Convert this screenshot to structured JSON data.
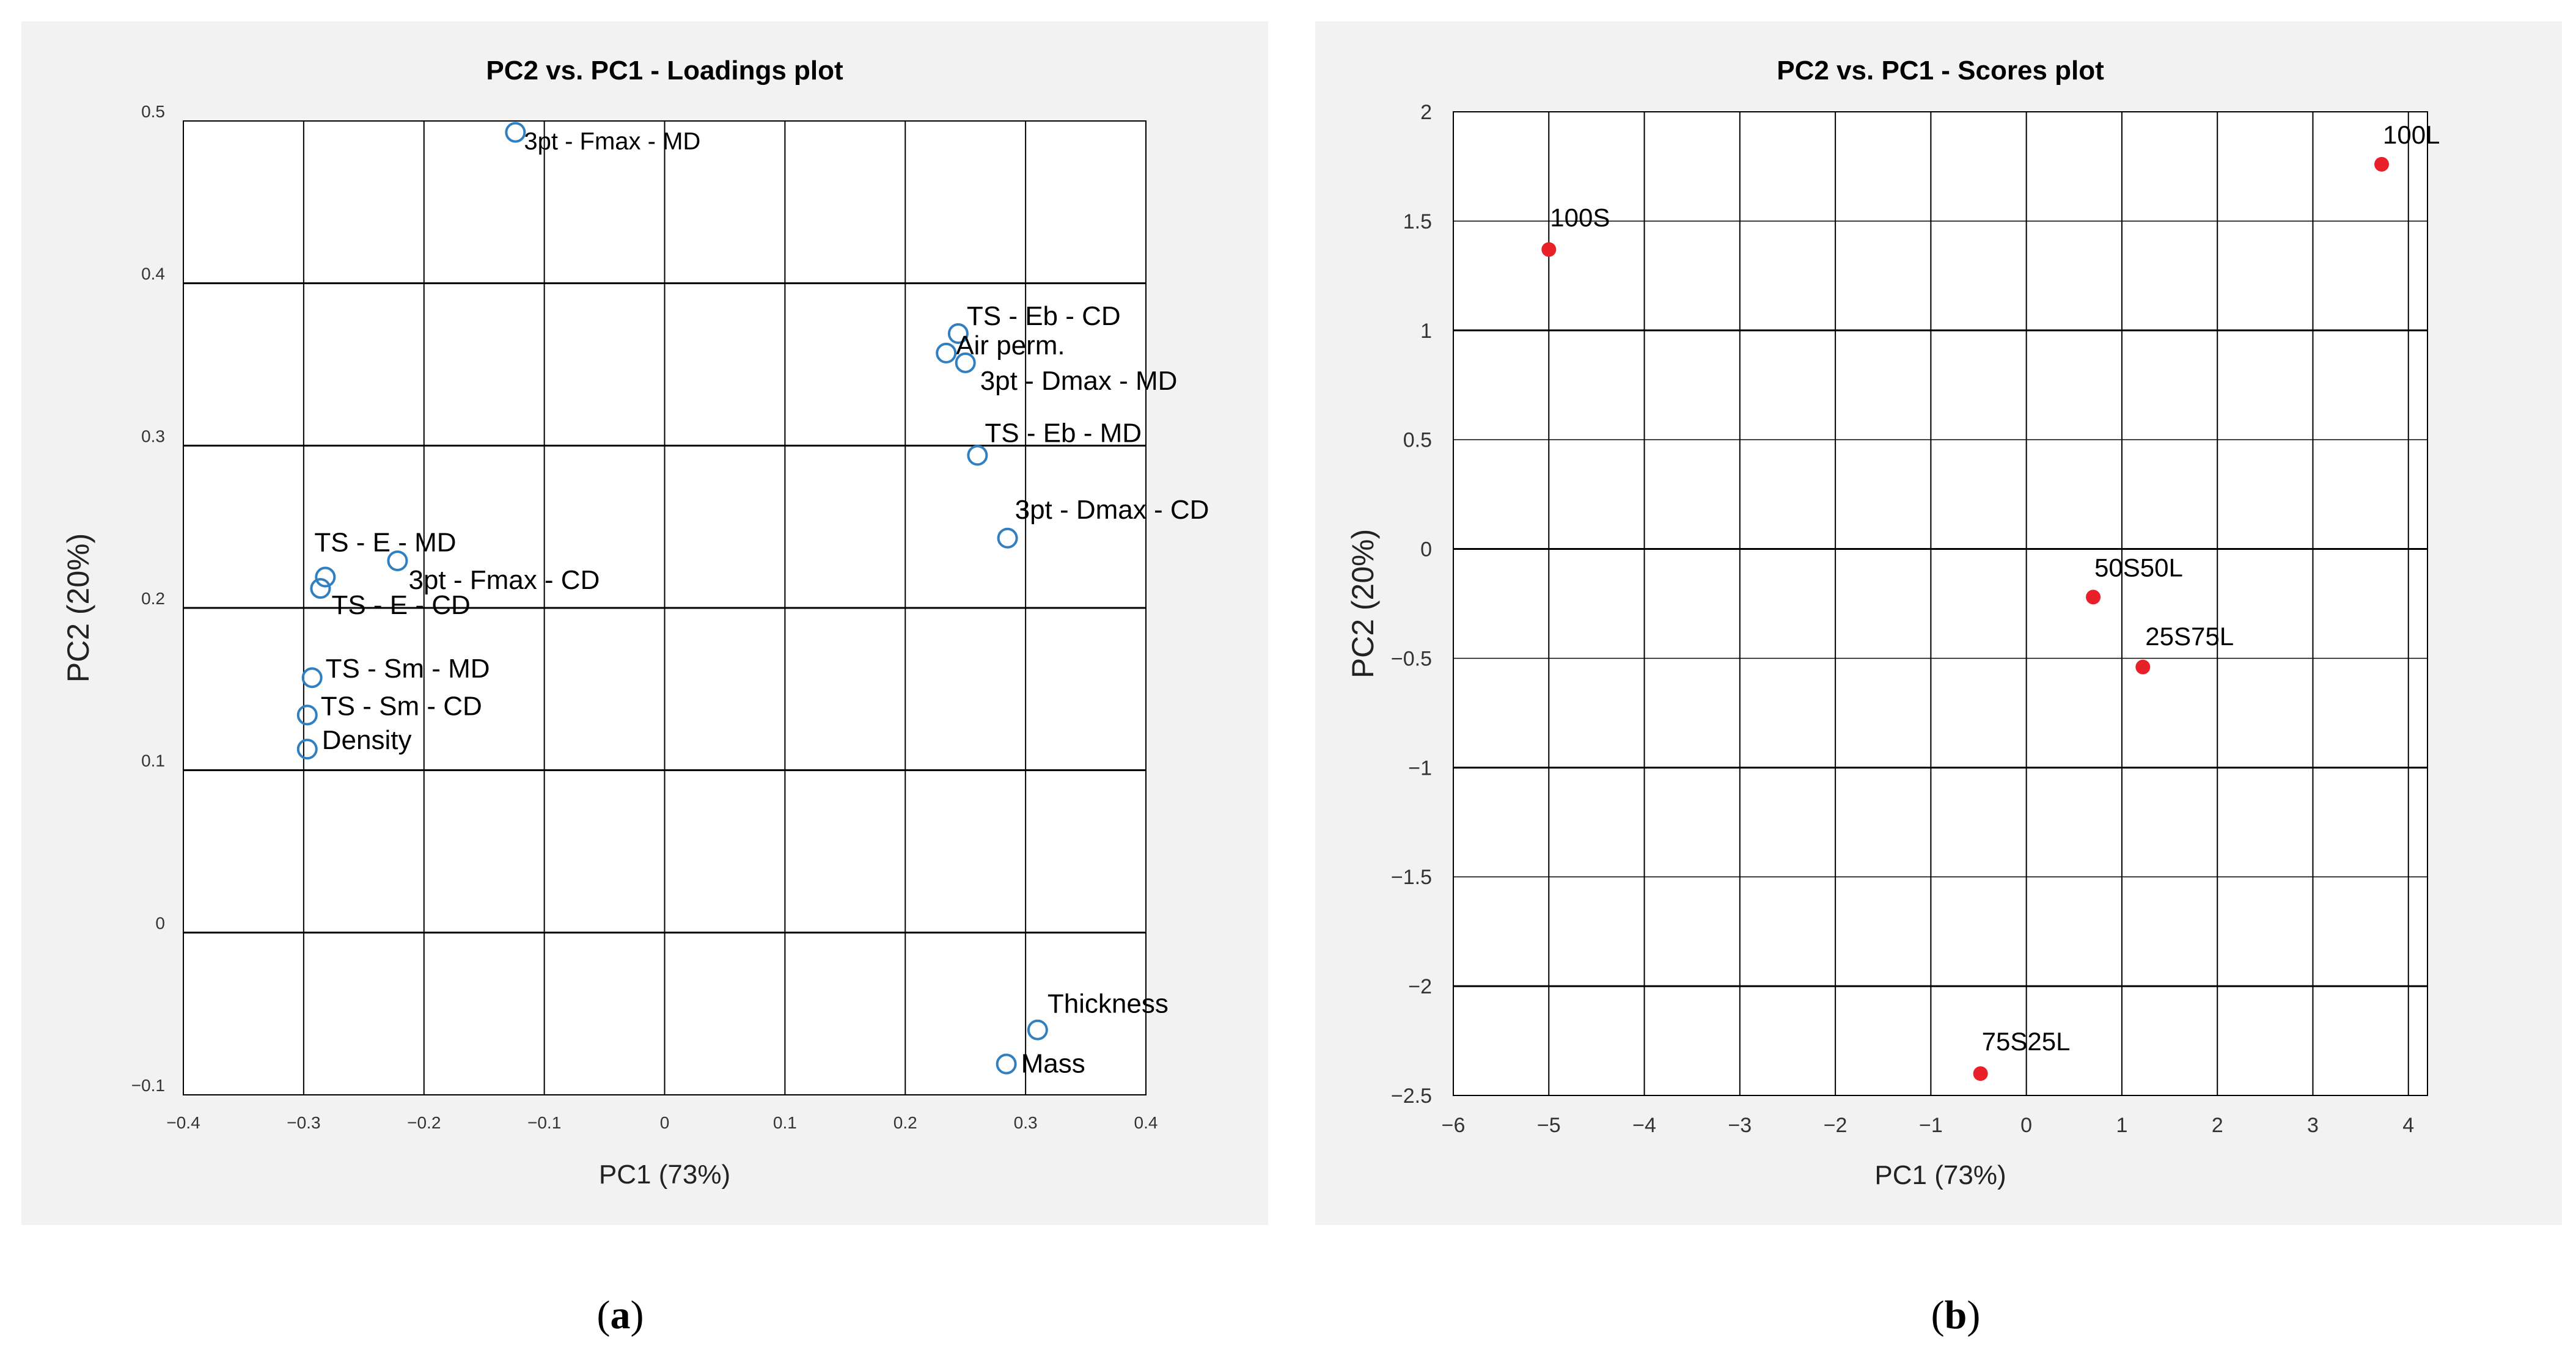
{
  "chart_data": [
    {
      "type": "scatter",
      "title": "PC2 vs. PC1 - Loadings plot",
      "xlabel": "PC1 (73%)",
      "ylabel": "PC2 (20%)",
      "xlim": [
        -0.4,
        0.4
      ],
      "ylim": [
        -0.1,
        0.5
      ],
      "xticks": [
        -0.4,
        -0.3,
        -0.2,
        -0.1,
        0,
        0.1,
        0.2,
        0.3,
        0.4
      ],
      "yticks": [
        -0.1,
        0,
        0.1,
        0.2,
        0.3,
        0.4,
        0.5
      ],
      "xtick_labels": [
        "−0.4",
        "−0.3",
        "−0.2",
        "−0.1",
        "0",
        "0.1",
        "0.2",
        "0.3",
        "0.4"
      ],
      "ytick_labels": [
        "−0.1",
        "0",
        "0.1",
        "0.2",
        "0.3",
        "0.4",
        "0.5"
      ],
      "grid": true,
      "marker": "open-circle",
      "marker_color": "#2f7fc1",
      "points": [
        {
          "label": "3pt - Fmax - MD",
          "x": -0.124,
          "y": 0.493
        },
        {
          "label": "TS - Eb - CD",
          "x": 0.244,
          "y": 0.369
        },
        {
          "label": "Air perm.",
          "x": 0.234,
          "y": 0.357
        },
        {
          "label": "3pt - Dmax - MD",
          "x": 0.25,
          "y": 0.351
        },
        {
          "label": "TS - Eb - MD",
          "x": 0.26,
          "y": 0.294
        },
        {
          "label": "3pt - Dmax - CD",
          "x": 0.285,
          "y": 0.243
        },
        {
          "label": "TS - E - MD",
          "x": -0.282,
          "y": 0.219
        },
        {
          "label": "3pt - Fmax - CD",
          "x": -0.222,
          "y": 0.229
        },
        {
          "label": "TS - E - CD",
          "x": -0.286,
          "y": 0.212
        },
        {
          "label": "TS - Sm - MD",
          "x": -0.293,
          "y": 0.157
        },
        {
          "label": "TS - Sm - CD",
          "x": -0.297,
          "y": 0.134
        },
        {
          "label": "Density",
          "x": -0.297,
          "y": 0.113
        },
        {
          "label": "Thickness",
          "x": 0.31,
          "y": -0.06
        },
        {
          "label": "Mass",
          "x": 0.284,
          "y": -0.081
        }
      ]
    },
    {
      "type": "scatter",
      "title": "PC2 vs. PC1 - Scores plot",
      "xlabel": "PC1 (73%)",
      "ylabel": "PC2 (20%)",
      "xlim": [
        -6,
        4.2
      ],
      "ylim": [
        -2.5,
        2
      ],
      "xticks": [
        -6,
        -5,
        -4,
        -3,
        -2,
        -1,
        0,
        1,
        2,
        3,
        4
      ],
      "yticks": [
        -2.5,
        -2,
        -1.5,
        -1,
        -0.5,
        0,
        0.5,
        1,
        1.5,
        2
      ],
      "xtick_labels": [
        "−6",
        "−5",
        "−4",
        "−3",
        "−2",
        "−1",
        "0",
        "1",
        "2",
        "3",
        "4"
      ],
      "ytick_labels": [
        "−2.5",
        "−2",
        "−1.5",
        "−1",
        "−0.5",
        "0",
        "0.5",
        "1",
        "1.5",
        "2"
      ],
      "grid": true,
      "marker": "filled-circle",
      "marker_color": "#e8202a",
      "points": [
        {
          "label": "100L",
          "x": 3.72,
          "y": 1.76
        },
        {
          "label": "100S",
          "x": -5.0,
          "y": 1.37
        },
        {
          "label": "50S50L",
          "x": 0.7,
          "y": -0.22
        },
        {
          "label": "25S75L",
          "x": 1.22,
          "y": -0.54
        },
        {
          "label": "75S25L",
          "x": -0.48,
          "y": -2.4
        }
      ]
    }
  ],
  "captions": [
    {
      "open": "(",
      "letter": "a",
      "close": ")"
    },
    {
      "open": "(",
      "letter": "b",
      "close": ")"
    }
  ]
}
